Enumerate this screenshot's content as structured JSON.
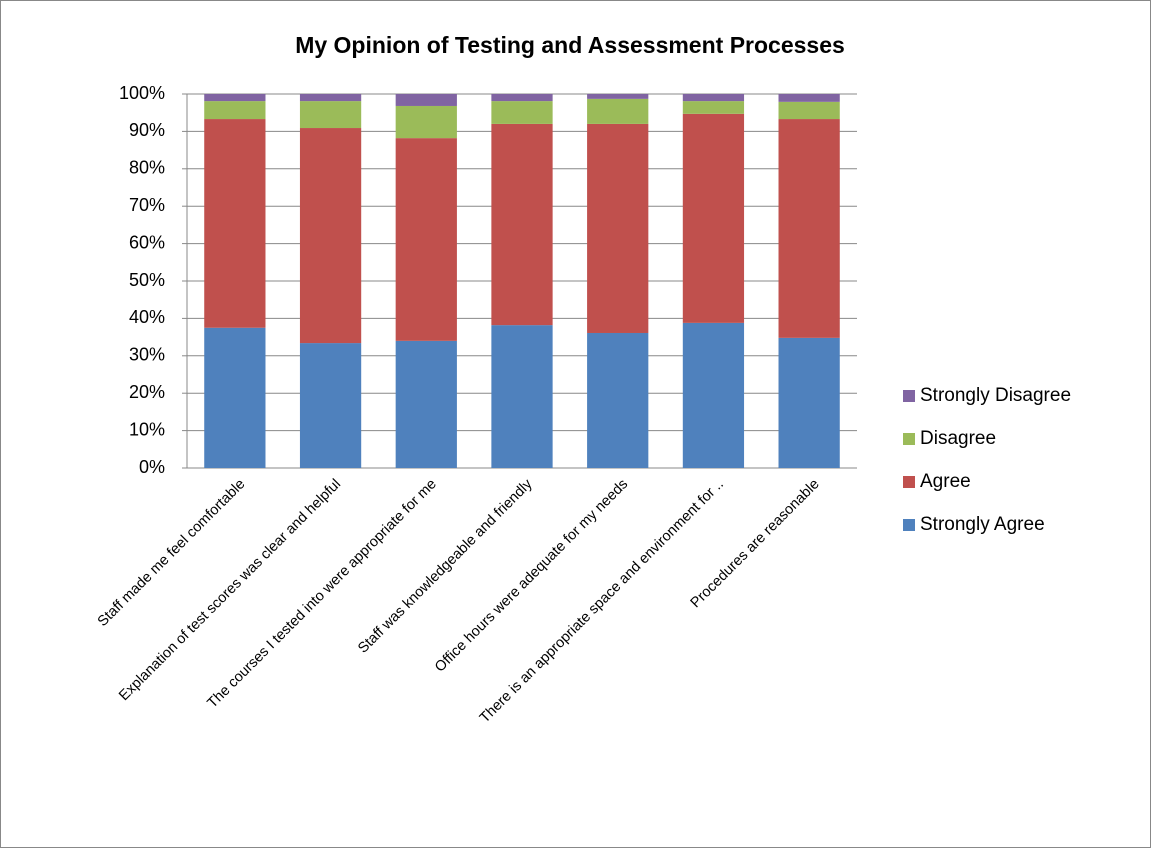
{
  "chart_data": {
    "type": "stacked_bar",
    "title": "My Opinion of Testing and Assessment Processes",
    "categories": [
      "Staff made me feel comfortable",
      "Explanation of test scores was clear and helpful",
      "The courses I tested into were appropriate for me",
      "Staff was knowledgeable and friendly",
      "Office hours were adequate for my needs",
      "There is an appropriate space and environment for ..",
      "Procedures are reasonable"
    ],
    "series": [
      {
        "name": "Strongly Agree",
        "color": "#4f81bd",
        "values": [
          37.5,
          33.4,
          34.0,
          38.2,
          36.1,
          38.8,
          34.8
        ]
      },
      {
        "name": "Agree",
        "color": "#c0504d",
        "values": [
          55.8,
          57.5,
          54.2,
          53.8,
          55.9,
          55.9,
          58.5
        ]
      },
      {
        "name": "Disagree",
        "color": "#9bbb59",
        "values": [
          4.8,
          7.2,
          8.6,
          6.1,
          6.7,
          3.4,
          4.6
        ]
      },
      {
        "name": "Strongly Disagree",
        "color": "#8064a2",
        "values": [
          1.9,
          1.9,
          3.2,
          1.9,
          1.3,
          1.9,
          2.1
        ]
      }
    ],
    "ylim": [
      0,
      100
    ],
    "yticks": [
      {
        "value": 0,
        "label": "0%"
      },
      {
        "value": 10,
        "label": "10%"
      },
      {
        "value": 20,
        "label": "20%"
      },
      {
        "value": 30,
        "label": "30%"
      },
      {
        "value": 40,
        "label": "40%"
      },
      {
        "value": 50,
        "label": "50%"
      },
      {
        "value": 60,
        "label": "60%"
      },
      {
        "value": 70,
        "label": "70%"
      },
      {
        "value": 80,
        "label": "80%"
      },
      {
        "value": 90,
        "label": "90%"
      },
      {
        "value": 100,
        "label": "100%"
      }
    ],
    "grid": true,
    "legend": "right"
  }
}
